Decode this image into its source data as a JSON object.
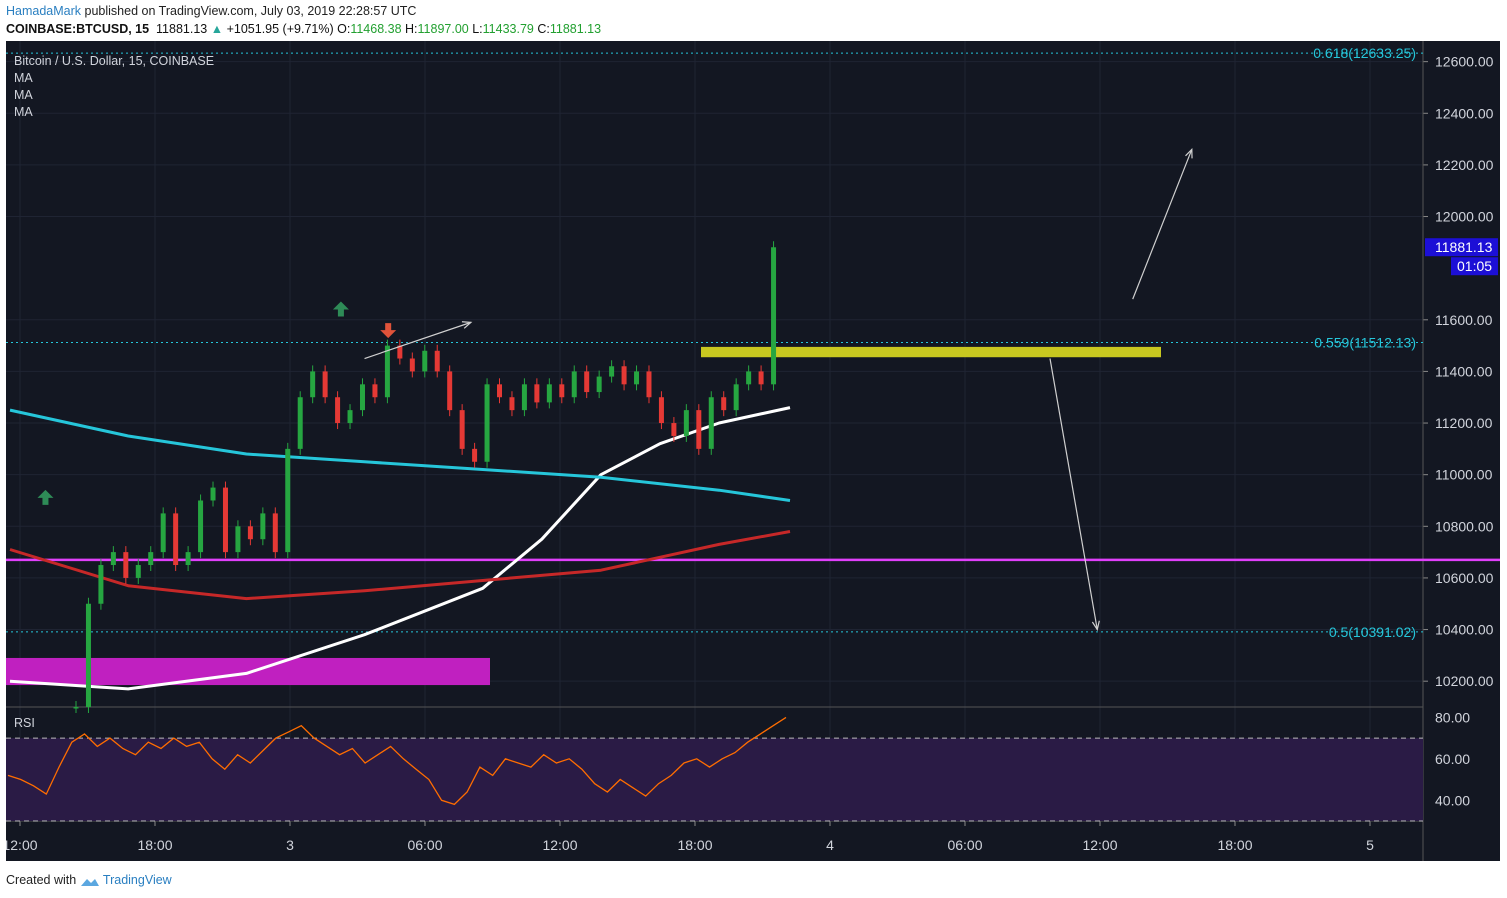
{
  "header": {
    "author": "HamadaMark",
    "published": "published on TradingView.com, July 03, 2019 22:28:57 UTC"
  },
  "symbol_bar": {
    "symbol": "COINBASE:BTCUSD, 15",
    "last": "11881.13",
    "change": "+1051.95 (+9.71%)",
    "o_label": "O:",
    "o_value": "11468.38",
    "h_label": "H:",
    "h_value": "11897.00",
    "l_label": "L:",
    "l_value": "11433.79",
    "c_label": "C:",
    "c_value": "11881.13"
  },
  "legend": {
    "title": "Bitcoin / U.S. Dollar, 15, COINBASE",
    "indicators": [
      "MA",
      "MA",
      "MA"
    ]
  },
  "footer": {
    "created_with": "Created with",
    "brand": "TradingView"
  },
  "colors": {
    "background": "#131722",
    "grid": "#1f2433",
    "candle_up": "#26a641",
    "candle_down": "#e53935",
    "ma_fast": "#ffffff",
    "ma_mid": "#26c6da",
    "ma_slow": "#c62828",
    "fib": "#26c6da",
    "support_line": "#e040fb",
    "zone_yellow": "#c8c820",
    "zone_magenta": "#c020c0",
    "rsi_line": "#ff6d00",
    "price_label": "#1c0fd6"
  },
  "chart_data": [
    {
      "type": "candlestick",
      "title": "Bitcoin / U.S. Dollar, 15, COINBASE",
      "ylim": [
        10100,
        12680
      ],
      "y_ticks": [
        "12600.00",
        "12400.00",
        "12200.00",
        "12000.00",
        "11600.00",
        "11400.00",
        "11200.00",
        "11000.00",
        "10800.00",
        "10600.00",
        "10400.00",
        "10200.00"
      ],
      "x_ticks": [
        "12:00",
        "18:00",
        "3",
        "06:00",
        "12:00",
        "18:00",
        "4",
        "06:00",
        "12:00",
        "18:00",
        "5"
      ],
      "current_price": "11881.13",
      "countdown": "01:05",
      "fib_levels": [
        {
          "label": "0.618(12633.25)",
          "value": 12633.25
        },
        {
          "label": "0.559(11512.13)",
          "value": 11512.13
        },
        {
          "label": "0.5(10391.02)",
          "value": 10391.02
        }
      ],
      "horizontal_support": 10670,
      "zones": [
        {
          "name": "yellow",
          "low": 11455,
          "high": 11495
        },
        {
          "name": "magenta",
          "low": 10185,
          "high": 10290
        }
      ],
      "series": [
        {
          "name": "MA",
          "color": "white",
          "points": [
            [
              0,
              10200
            ],
            [
              10,
              10170
            ],
            [
              20,
              10230
            ],
            [
              30,
              10380
            ],
            [
              40,
              10560
            ],
            [
              45,
              10750
            ],
            [
              50,
              11000
            ],
            [
              55,
              11120
            ],
            [
              60,
              11200
            ],
            [
              66,
              11260
            ]
          ]
        },
        {
          "name": "MA",
          "color": "cyan",
          "points": [
            [
              0,
              11250
            ],
            [
              10,
              11150
            ],
            [
              20,
              11080
            ],
            [
              30,
              11050
            ],
            [
              40,
              11020
            ],
            [
              50,
              10990
            ],
            [
              60,
              10940
            ],
            [
              66,
              10900
            ]
          ]
        },
        {
          "name": "MA",
          "color": "red",
          "points": [
            [
              0,
              10710
            ],
            [
              10,
              10570
            ],
            [
              20,
              10520
            ],
            [
              30,
              10550
            ],
            [
              40,
              10590
            ],
            [
              50,
              10630
            ],
            [
              60,
              10730
            ],
            [
              66,
              10780
            ]
          ]
        }
      ],
      "candles_close": [
        10100,
        10500,
        10650,
        10700,
        10600,
        10650,
        10700,
        10850,
        10650,
        10700,
        10900,
        10950,
        10700,
        10800,
        10750,
        10850,
        10700,
        11100,
        11300,
        11400,
        11300,
        11200,
        11250,
        11350,
        11300,
        11500,
        11450,
        11400,
        11480,
        11400,
        11250,
        11100,
        11050,
        11350,
        11300,
        11250,
        11350,
        11280,
        11350,
        11300,
        11400,
        11320,
        11380,
        11420,
        11350,
        11400,
        11300,
        11200,
        11150,
        11250,
        11100,
        11300,
        11250,
        11350,
        11400,
        11350,
        11881
      ],
      "arrows": [
        {
          "from": [
            28,
            11450
          ],
          "to": [
            37,
            11590
          ]
        },
        {
          "from": [
            75,
            11680
          ],
          "to": [
            80,
            12260
          ]
        },
        {
          "from": [
            68,
            11450
          ],
          "to": [
            72,
            10400
          ]
        }
      ],
      "signal_markers": [
        {
          "kind": "up",
          "x": 2,
          "y": 10910
        },
        {
          "kind": "up",
          "x": 27,
          "y": 11640
        },
        {
          "kind": "down",
          "x": 31,
          "y": 11560
        }
      ]
    },
    {
      "type": "line",
      "title": "RSI",
      "ylim": [
        30,
        85
      ],
      "y_ticks": [
        "80.00",
        "60.00",
        "40.00"
      ],
      "levels": [
        70,
        30
      ],
      "series": [
        {
          "name": "RSI",
          "values": [
            52,
            50,
            47,
            43,
            56,
            68,
            72,
            66,
            70,
            65,
            62,
            68,
            65,
            70,
            66,
            68,
            60,
            55,
            62,
            58,
            64,
            70,
            73,
            76,
            70,
            66,
            62,
            65,
            58,
            62,
            66,
            60,
            55,
            50,
            40,
            38,
            44,
            56,
            52,
            60,
            58,
            56,
            62,
            58,
            60,
            55,
            48,
            44,
            50,
            46,
            42,
            48,
            52,
            58,
            60,
            56,
            60,
            63,
            68,
            72,
            76,
            80
          ]
        }
      ]
    }
  ]
}
